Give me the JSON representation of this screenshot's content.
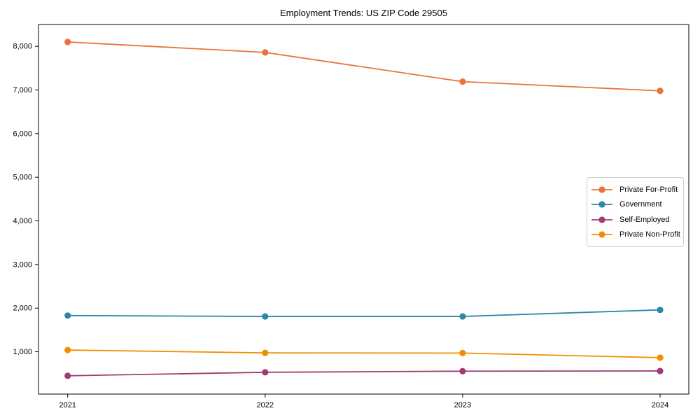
{
  "page": {
    "background_color": "#ffffff",
    "text_color": "#000000",
    "axis_color": "#000000",
    "legend_border_color": "#cccccc"
  },
  "chart_data": {
    "type": "line",
    "title": "Employment Trends: US ZIP Code 29505",
    "xlabel": "",
    "ylabel": "",
    "x": [
      "2021",
      "2022",
      "2023",
      "2024"
    ],
    "series": [
      {
        "name": "Private For-Profit",
        "color": "#E8743B",
        "values": [
          8100,
          7860,
          7190,
          6980
        ]
      },
      {
        "name": "Government",
        "color": "#2E86AB",
        "values": [
          1830,
          1810,
          1810,
          1960
        ]
      },
      {
        "name": "Self-Employed",
        "color": "#A23B72",
        "values": [
          450,
          530,
          555,
          560
        ]
      },
      {
        "name": "Private Non-Profit",
        "color": "#F18F01",
        "values": [
          1040,
          975,
          970,
          865
        ]
      }
    ],
    "ylim": [
      30,
      8500
    ],
    "y_ticks": [
      {
        "value": 1000,
        "label": "1,000"
      },
      {
        "value": 2000,
        "label": "2,000"
      },
      {
        "value": 3000,
        "label": "3,000"
      },
      {
        "value": 4000,
        "label": "4,000"
      },
      {
        "value": 5000,
        "label": "5,000"
      },
      {
        "value": 6000,
        "label": "6,000"
      },
      {
        "value": 7000,
        "label": "7,000"
      },
      {
        "value": 8000,
        "label": "8,000"
      }
    ],
    "grid": false,
    "legend_position": "center-right",
    "marker": "circle",
    "frame": "box"
  }
}
